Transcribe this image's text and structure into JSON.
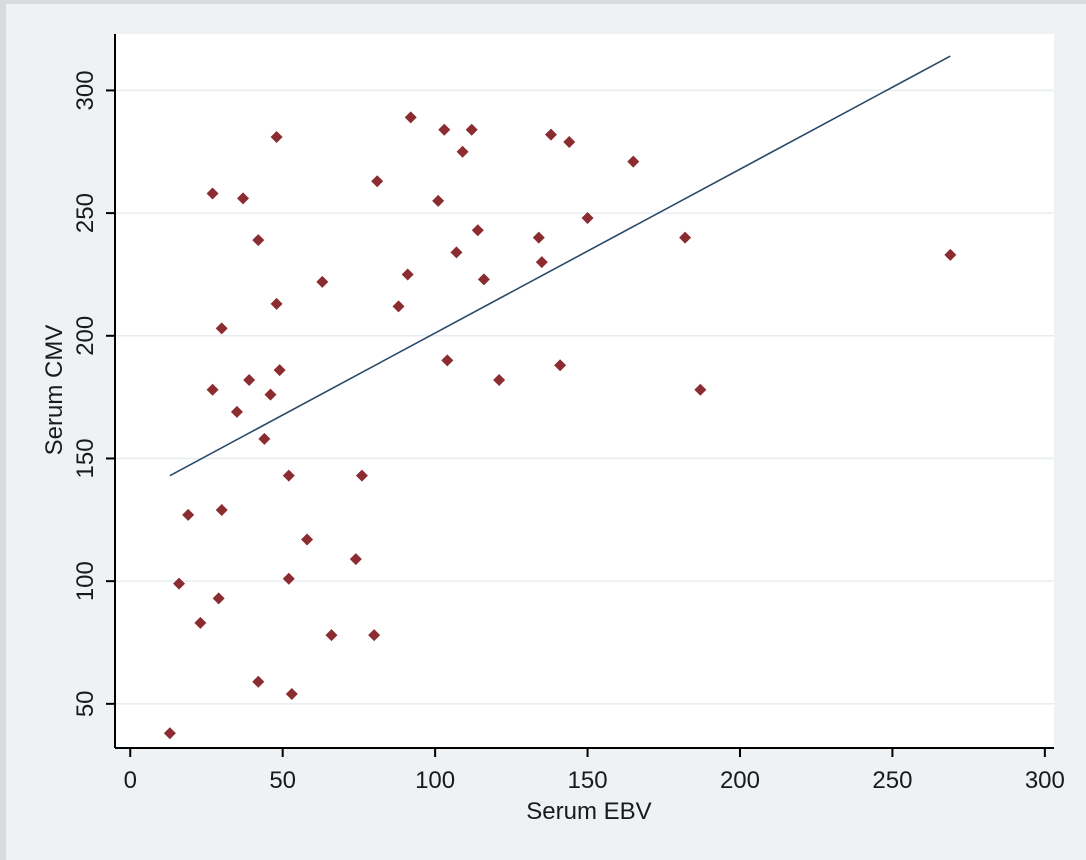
{
  "chart_data": {
    "type": "scatter",
    "title": "",
    "xlabel": "Serum EBV",
    "ylabel": "Serum CMV",
    "xlim": [
      -5,
      303
    ],
    "ylim": [
      32,
      323
    ],
    "xticks": [
      0,
      50,
      100,
      150,
      200,
      250,
      300
    ],
    "yticks": [
      50,
      100,
      150,
      200,
      250,
      300
    ],
    "grid": "horizontal",
    "legend": "none",
    "colors": {
      "points": "#8b2c30",
      "fit_line": "#2a4a6a",
      "plot_background": "#ffffff",
      "grid": "#e6edf0",
      "frame": "#eef2f4"
    },
    "points": [
      {
        "x": 13,
        "y": 38
      },
      {
        "x": 16,
        "y": 99
      },
      {
        "x": 19,
        "y": 127
      },
      {
        "x": 23,
        "y": 83
      },
      {
        "x": 27,
        "y": 258
      },
      {
        "x": 27,
        "y": 178
      },
      {
        "x": 29,
        "y": 93
      },
      {
        "x": 30,
        "y": 129
      },
      {
        "x": 30,
        "y": 203
      },
      {
        "x": 35,
        "y": 169
      },
      {
        "x": 37,
        "y": 256
      },
      {
        "x": 39,
        "y": 182
      },
      {
        "x": 42,
        "y": 239
      },
      {
        "x": 42,
        "y": 59
      },
      {
        "x": 44,
        "y": 158
      },
      {
        "x": 46,
        "y": 176
      },
      {
        "x": 48,
        "y": 281
      },
      {
        "x": 48,
        "y": 213
      },
      {
        "x": 49,
        "y": 186
      },
      {
        "x": 52,
        "y": 143
      },
      {
        "x": 52,
        "y": 101
      },
      {
        "x": 53,
        "y": 54
      },
      {
        "x": 58,
        "y": 117
      },
      {
        "x": 63,
        "y": 222
      },
      {
        "x": 66,
        "y": 78
      },
      {
        "x": 74,
        "y": 109
      },
      {
        "x": 76,
        "y": 143
      },
      {
        "x": 80,
        "y": 78
      },
      {
        "x": 81,
        "y": 263
      },
      {
        "x": 88,
        "y": 212
      },
      {
        "x": 91,
        "y": 225
      },
      {
        "x": 92,
        "y": 289
      },
      {
        "x": 101,
        "y": 255
      },
      {
        "x": 103,
        "y": 284
      },
      {
        "x": 104,
        "y": 190
      },
      {
        "x": 107,
        "y": 234
      },
      {
        "x": 109,
        "y": 275
      },
      {
        "x": 112,
        "y": 284
      },
      {
        "x": 114,
        "y": 243
      },
      {
        "x": 116,
        "y": 223
      },
      {
        "x": 121,
        "y": 182
      },
      {
        "x": 134,
        "y": 240
      },
      {
        "x": 135,
        "y": 230
      },
      {
        "x": 138,
        "y": 282
      },
      {
        "x": 141,
        "y": 188
      },
      {
        "x": 144,
        "y": 279
      },
      {
        "x": 150,
        "y": 248
      },
      {
        "x": 165,
        "y": 271
      },
      {
        "x": 182,
        "y": 240
      },
      {
        "x": 187,
        "y": 178
      },
      {
        "x": 269,
        "y": 233
      }
    ],
    "fit_line": {
      "x": [
        13,
        269
      ],
      "y": [
        143,
        314
      ]
    }
  }
}
